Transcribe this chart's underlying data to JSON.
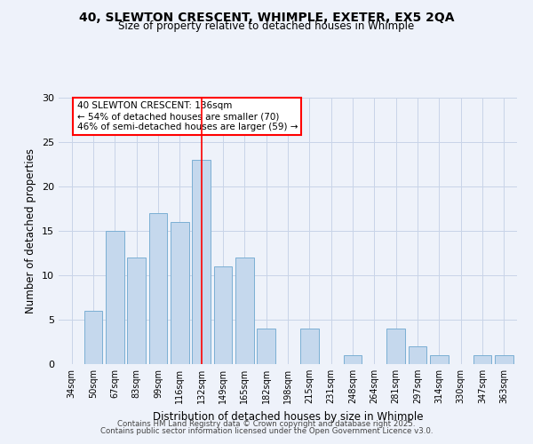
{
  "title": "40, SLEWTON CRESCENT, WHIMPLE, EXETER, EX5 2QA",
  "subtitle": "Size of property relative to detached houses in Whimple",
  "xlabel": "Distribution of detached houses by size in Whimple",
  "ylabel": "Number of detached properties",
  "bar_labels": [
    "34sqm",
    "50sqm",
    "67sqm",
    "83sqm",
    "99sqm",
    "116sqm",
    "132sqm",
    "149sqm",
    "165sqm",
    "182sqm",
    "198sqm",
    "215sqm",
    "231sqm",
    "248sqm",
    "264sqm",
    "281sqm",
    "297sqm",
    "314sqm",
    "330sqm",
    "347sqm",
    "363sqm"
  ],
  "bar_values": [
    0,
    6,
    15,
    12,
    17,
    16,
    23,
    11,
    12,
    4,
    0,
    4,
    0,
    1,
    0,
    4,
    2,
    1,
    0,
    1,
    1
  ],
  "bar_color": "#c5d8ed",
  "bar_edgecolor": "#7bafd4",
  "red_line_label": "132sqm",
  "annotation_title": "40 SLEWTON CRESCENT: 136sqm",
  "annotation_line1": "← 54% of detached houses are smaller (70)",
  "annotation_line2": "46% of semi-detached houses are larger (59) →",
  "bg_color": "#eef2fa",
  "ylim": [
    0,
    30
  ],
  "yticks": [
    0,
    5,
    10,
    15,
    20,
    25,
    30
  ],
  "footer1": "Contains HM Land Registry data © Crown copyright and database right 2025.",
  "footer2": "Contains public sector information licensed under the Open Government Licence v3.0.",
  "grid_color": "#c8d4e8"
}
